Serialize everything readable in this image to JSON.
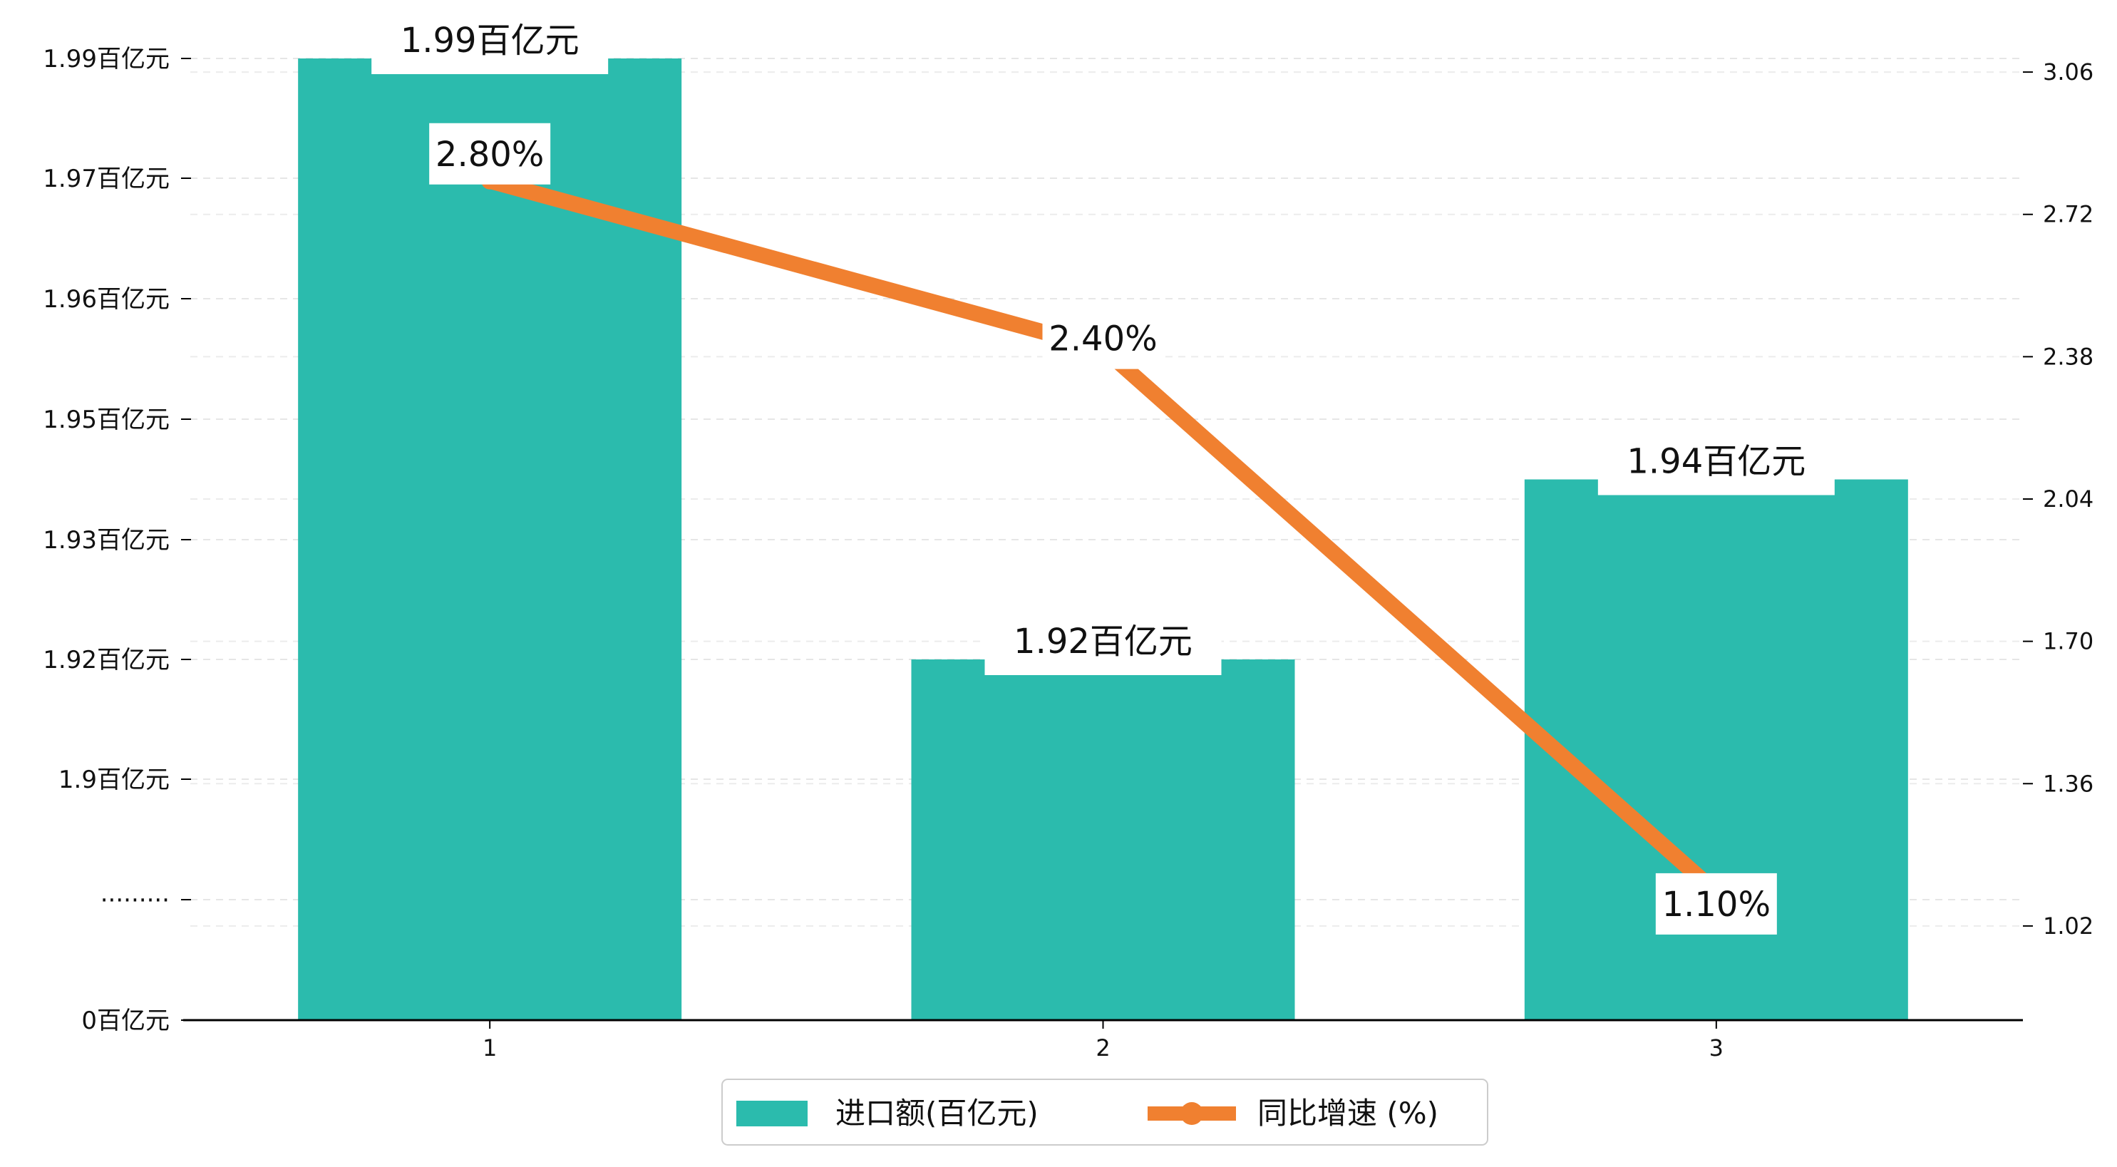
{
  "chart_data": {
    "type": "bar",
    "categories": [
      "1",
      "2",
      "3"
    ],
    "series": [
      {
        "name": "进口额(百亿元)",
        "type": "bar",
        "axis": "left",
        "values": [
          1.99,
          1.92,
          1.94
        ],
        "labels": [
          "1.99百亿元",
          "1.92百亿元",
          "1.94百亿元"
        ],
        "color": "#2bbbad"
      },
      {
        "name": "同比增速 (%)",
        "type": "line",
        "axis": "right",
        "values": [
          2.8,
          2.4,
          1.1
        ],
        "labels": [
          "2.80%",
          "2.40%",
          "1.10%"
        ],
        "color": "#f08030"
      }
    ],
    "left_axis": {
      "ticks": [
        {
          "label": "0百亿元",
          "level": 0
        },
        {
          "label": "·········",
          "level": 1
        },
        {
          "label": "1.9百亿元",
          "level": 2
        },
        {
          "label": "1.92百亿元",
          "level": 3
        },
        {
          "label": "1.93百亿元",
          "level": 4
        },
        {
          "label": "1.95百亿元",
          "level": 5
        },
        {
          "label": "1.96百亿元",
          "level": 6
        },
        {
          "label": "1.97百亿元",
          "level": 7
        },
        {
          "label": "1.99百亿元",
          "level": 8
        }
      ]
    },
    "right_axis": {
      "ticks": [
        "1.02",
        "1.36",
        "1.70",
        "2.04",
        "2.38",
        "2.72",
        "3.06"
      ],
      "ylim": [
        0.795,
        3.13
      ]
    },
    "grid": true,
    "legend_position": "bottom-center"
  }
}
